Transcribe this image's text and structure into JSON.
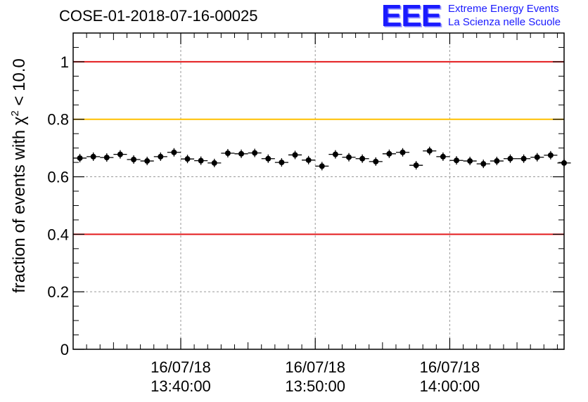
{
  "header": {
    "run_title": "COSE-01-2018-07-16-00025",
    "logo_mark": "EEE",
    "logo_line1": "Extreme Energy Events",
    "logo_line2": "La Scienza nelle Scuole"
  },
  "colors": {
    "red_threshold": "#e31a1c",
    "yellow_threshold": "#ffc000",
    "points": "#000000",
    "grid": "#999999",
    "logo_blue": "#1a1aff"
  },
  "chart_data": {
    "type": "scatter",
    "title": "COSE-01-2018-07-16-00025",
    "ylabel_parts": {
      "prefix": "fraction of events with ",
      "symbol": "χ",
      "superscript": "2",
      "suffix": " < 10.0"
    },
    "xlabel": "",
    "x_axis": {
      "kind": "time",
      "range": [
        "16/07/18 13:32:00",
        "16/07/18 14:08:30"
      ],
      "tick_labels": [
        {
          "time": "13:40:00",
          "date": "16/07/18",
          "label_time": "13:40:00"
        },
        {
          "time": "13:50:00",
          "date": "16/07/18",
          "label_time": "13:50:00"
        },
        {
          "time": "14:00:00",
          "date": "16/07/18",
          "label_time": "14:00:00"
        }
      ]
    },
    "ylim": [
      0,
      1.1
    ],
    "y_tick_labels": [
      "0",
      "0.2",
      "0.4",
      "0.6",
      "0.8",
      "1"
    ],
    "grid": true,
    "threshold_lines": [
      {
        "y": 1.0,
        "color": "red"
      },
      {
        "y": 0.8,
        "color": "yellow"
      },
      {
        "y": 0.4,
        "color": "red"
      }
    ],
    "points": [
      {
        "x": "13:32:30",
        "y": 0.665
      },
      {
        "x": "13:33:30",
        "y": 0.67
      },
      {
        "x": "13:34:30",
        "y": 0.667
      },
      {
        "x": "13:35:30",
        "y": 0.678
      },
      {
        "x": "13:36:30",
        "y": 0.66
      },
      {
        "x": "13:37:30",
        "y": 0.655
      },
      {
        "x": "13:38:30",
        "y": 0.67
      },
      {
        "x": "13:39:30",
        "y": 0.685
      },
      {
        "x": "13:40:30",
        "y": 0.662
      },
      {
        "x": "13:41:30",
        "y": 0.656
      },
      {
        "x": "13:42:30",
        "y": 0.648
      },
      {
        "x": "13:43:30",
        "y": 0.682
      },
      {
        "x": "13:44:30",
        "y": 0.68
      },
      {
        "x": "13:45:30",
        "y": 0.683
      },
      {
        "x": "13:46:30",
        "y": 0.663
      },
      {
        "x": "13:47:30",
        "y": 0.65
      },
      {
        "x": "13:48:30",
        "y": 0.676
      },
      {
        "x": "13:49:30",
        "y": 0.658
      },
      {
        "x": "13:50:30",
        "y": 0.637
      },
      {
        "x": "13:51:30",
        "y": 0.678
      },
      {
        "x": "13:52:30",
        "y": 0.668
      },
      {
        "x": "13:53:30",
        "y": 0.663
      },
      {
        "x": "13:54:30",
        "y": 0.653
      },
      {
        "x": "13:55:30",
        "y": 0.68
      },
      {
        "x": "13:56:30",
        "y": 0.685
      },
      {
        "x": "13:57:30",
        "y": 0.64
      },
      {
        "x": "13:58:30",
        "y": 0.69
      },
      {
        "x": "13:59:30",
        "y": 0.67
      },
      {
        "x": "14:00:30",
        "y": 0.657
      },
      {
        "x": "14:01:30",
        "y": 0.655
      },
      {
        "x": "14:02:30",
        "y": 0.645
      },
      {
        "x": "14:03:30",
        "y": 0.655
      },
      {
        "x": "14:04:30",
        "y": 0.663
      },
      {
        "x": "14:05:30",
        "y": 0.663
      },
      {
        "x": "14:06:30",
        "y": 0.668
      },
      {
        "x": "14:07:30",
        "y": 0.675
      },
      {
        "x": "14:08:30",
        "y": 0.648
      }
    ]
  }
}
